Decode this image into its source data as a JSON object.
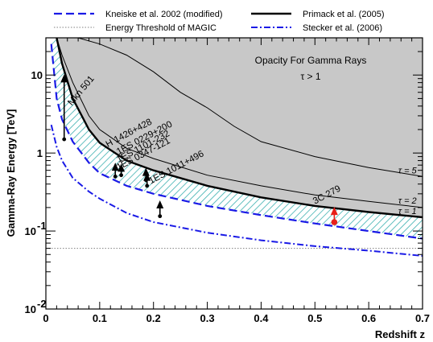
{
  "chart_data": {
    "type": "line",
    "xlabel": "Redshift z",
    "ylabel": "Gamma-Ray Energy [TeV]",
    "xlim": [
      0,
      0.7
    ],
    "ylim": [
      0.01,
      30
    ],
    "ylog": true,
    "x_ticks": [
      {
        "value": 0,
        "label": "0"
      },
      {
        "value": 0.1,
        "label": "0.1"
      },
      {
        "value": 0.2,
        "label": "0.2"
      },
      {
        "value": 0.3,
        "label": "0.3"
      },
      {
        "value": 0.4,
        "label": "0.4"
      },
      {
        "value": 0.5,
        "label": "0.5"
      },
      {
        "value": 0.6,
        "label": "0.6"
      },
      {
        "value": 0.7,
        "label": "0.7"
      }
    ],
    "y_ticks": [
      {
        "value": 0.01,
        "base": "10",
        "exp": "-2"
      },
      {
        "value": 0.1,
        "base": "10",
        "exp": "-1"
      },
      {
        "value": 1,
        "base": "1",
        "exp": ""
      },
      {
        "value": 10,
        "base": "10",
        "exp": ""
      }
    ],
    "annotation": {
      "line1": "Opacity For Gamma Rays",
      "line2": "τ > 1"
    },
    "legend": [
      {
        "label": "Kneiske et al. 2002 (modified)",
        "style": "dashed",
        "color": "#1a1ae6"
      },
      {
        "label": "Primack et al. (2005)",
        "style": "solid-thick",
        "color": "#000000"
      },
      {
        "label": "Energy Threshold of MAGIC",
        "style": "dotted",
        "color": "#808080"
      },
      {
        "label": "Stecker et al. (2006)",
        "style": "dashdot",
        "color": "#1a1ae6"
      }
    ],
    "series": [
      {
        "name": "Kneiske et al. 2002 (modified)",
        "color": "#1a1ae6",
        "x": [
          0.01,
          0.02,
          0.03,
          0.05,
          0.08,
          0.1,
          0.15,
          0.2,
          0.3,
          0.4,
          0.5,
          0.6,
          0.7
        ],
        "y": [
          25,
          5,
          2.7,
          1.4,
          0.75,
          0.55,
          0.38,
          0.3,
          0.21,
          0.16,
          0.125,
          0.1,
          0.08
        ]
      },
      {
        "name": "Primack et al. (2005)",
        "color": "#000000",
        "x": [
          0.02,
          0.03,
          0.05,
          0.08,
          0.1,
          0.15,
          0.2,
          0.3,
          0.4,
          0.5,
          0.6,
          0.7
        ],
        "y": [
          30,
          14,
          5,
          2,
          1.35,
          0.8,
          0.6,
          0.38,
          0.27,
          0.21,
          0.175,
          0.15
        ]
      },
      {
        "name": "Energy Threshold of MAGIC",
        "color": "#808080",
        "x": [
          0.0,
          0.7
        ],
        "y": [
          0.06,
          0.06
        ]
      },
      {
        "name": "Stecker et al. (2006)",
        "color": "#1a1ae6",
        "x": [
          0.01,
          0.02,
          0.03,
          0.05,
          0.08,
          0.1,
          0.15,
          0.2,
          0.3,
          0.4,
          0.5,
          0.6,
          0.7
        ],
        "y": [
          2.3,
          1.2,
          0.8,
          0.48,
          0.32,
          0.26,
          0.17,
          0.13,
          0.095,
          0.076,
          0.064,
          0.056,
          0.048
        ]
      }
    ],
    "tau_curves": [
      {
        "label": "τ = 5",
        "x": [
          0.06,
          0.1,
          0.15,
          0.2,
          0.25,
          0.3,
          0.35,
          0.4,
          0.5,
          0.6,
          0.7
        ],
        "y": [
          30,
          25,
          18,
          11,
          6,
          3.8,
          2.2,
          1.4,
          0.9,
          0.65,
          0.5
        ]
      },
      {
        "label": "τ = 2",
        "x": [
          0.02,
          0.03,
          0.05,
          0.08,
          0.1,
          0.15,
          0.2,
          0.3,
          0.4,
          0.5,
          0.6,
          0.7
        ],
        "y": [
          30,
          18,
          8,
          3,
          2,
          1.15,
          0.85,
          0.52,
          0.38,
          0.29,
          0.24,
          0.2
        ]
      }
    ],
    "tau_one_label": "τ = 1",
    "sources": [
      {
        "name": "Mkn 501",
        "z": 0.034,
        "e_low": 1.5,
        "e_high": 9.5,
        "color": "#000000"
      },
      {
        "name": "H 1426+428",
        "z": 0.129,
        "e_low": 0.5,
        "e_high": 0.7,
        "color": "#000000"
      },
      {
        "name": "1ES 0229+200",
        "z": 0.14,
        "e_low": 0.52,
        "e_high": 0.68,
        "color": "#000000"
      },
      {
        "name": "1ES 1101-232",
        "z": 0.186,
        "e_low": 0.45,
        "e_high": 0.6,
        "color": "#000000"
      },
      {
        "name": "1ES 0347-121",
        "z": 0.188,
        "e_low": 0.38,
        "e_high": 0.52,
        "color": "#000000"
      },
      {
        "name": "1ES 1011+496",
        "z": 0.212,
        "e_low": 0.155,
        "e_high": 0.23,
        "color": "#000000"
      },
      {
        "name": "3C 279",
        "z": 0.536,
        "e_low": 0.13,
        "e_high": 0.19,
        "color": "#e8201a"
      }
    ],
    "colors": {
      "opacity_fill": "#c8c8c8",
      "hatch": "#3cb0b0",
      "frame": "#000000"
    }
  }
}
